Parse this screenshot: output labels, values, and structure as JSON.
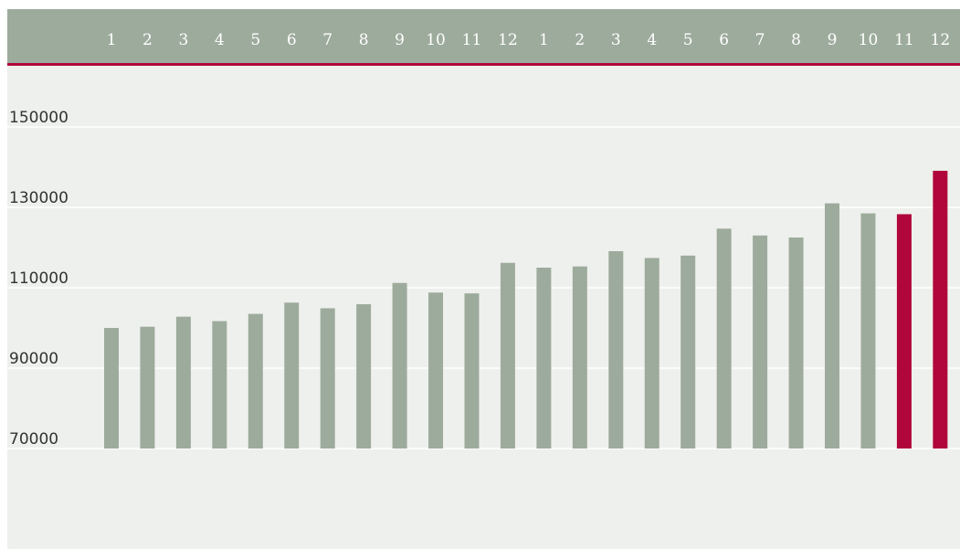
{
  "chart_data": {
    "type": "bar",
    "title": "",
    "xlabel": "",
    "ylabel": "",
    "x_axis_position": "top",
    "categories": [
      "1",
      "2",
      "3",
      "4",
      "5",
      "6",
      "7",
      "8",
      "9",
      "10",
      "11",
      "12",
      "1",
      "2",
      "3",
      "4",
      "5",
      "6",
      "7",
      "8",
      "9",
      "10",
      "11",
      "12"
    ],
    "values": [
      100000,
      100300,
      102800,
      101700,
      103500,
      106300,
      104900,
      105900,
      111200,
      108800,
      108600,
      116200,
      115000,
      115300,
      119100,
      117400,
      118000,
      124700,
      123000,
      122500,
      131000,
      128500,
      128300,
      139100
    ],
    "ylim": [
      70000,
      150000
    ],
    "yticks": [
      70000,
      90000,
      110000,
      130000,
      150000
    ],
    "grid": true,
    "colors": {
      "background": "#eef0ed",
      "header_band": "#9dab9c",
      "header_rule": "#b0063b",
      "bar_default": "#9dab9c",
      "bar_highlight": "#b0063b",
      "gridline": "#ffffff"
    },
    "highlighted_indices": [
      22,
      23
    ]
  }
}
